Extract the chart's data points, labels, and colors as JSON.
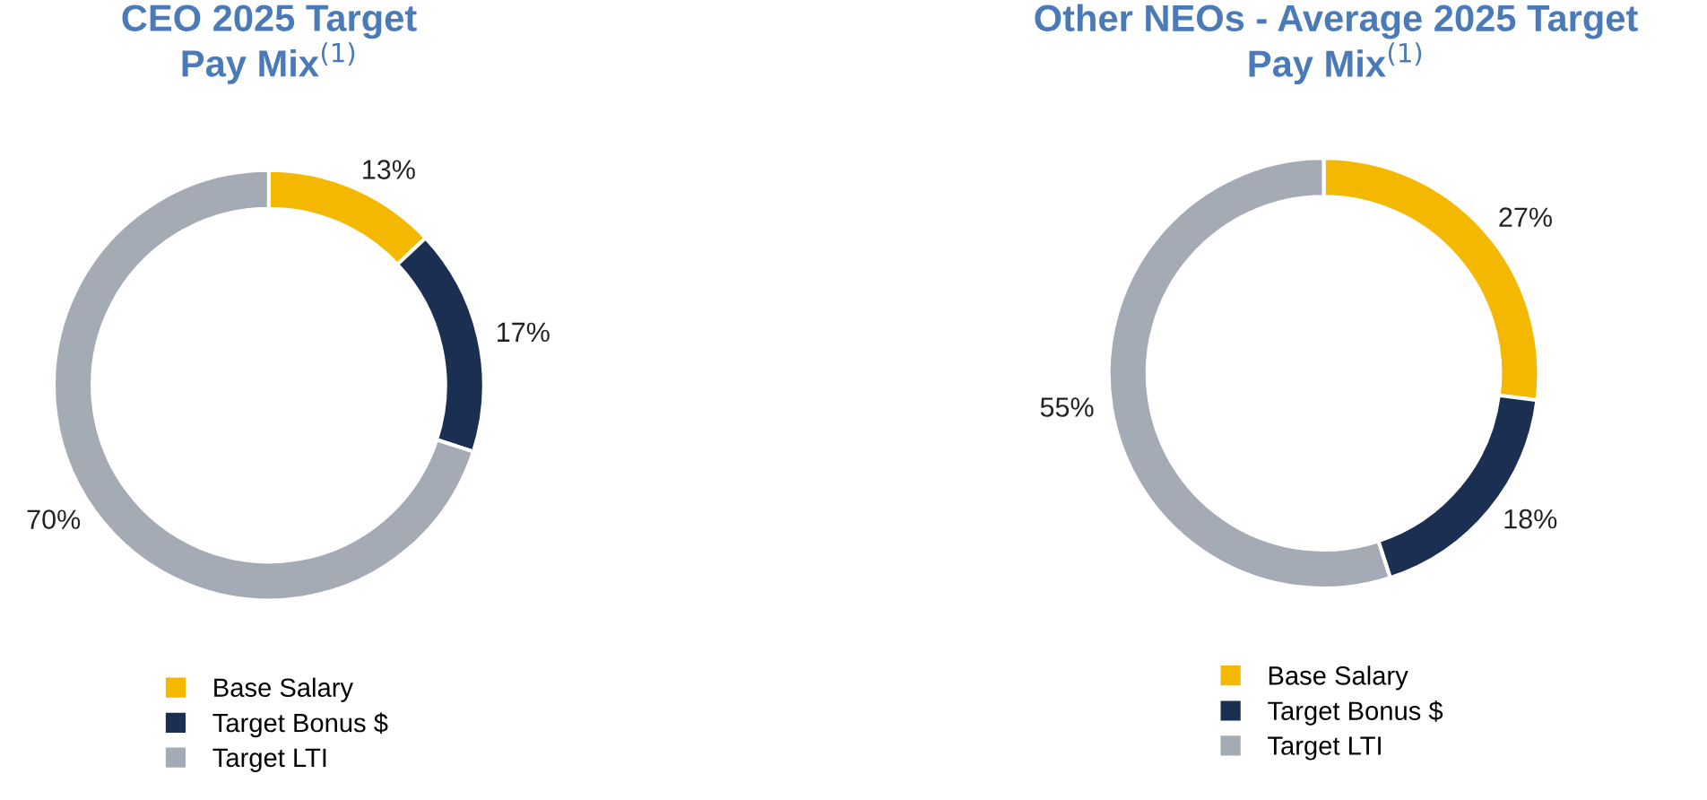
{
  "chart_data": [
    {
      "type": "donut",
      "title": "CEO 2025 Target\nPay Mix$^{(1)}$",
      "categories": [
        "Base Salary",
        "Target Bonus $",
        "Target LTI"
      ],
      "values": [
        13,
        17,
        70
      ],
      "value_labels": [
        "13%",
        "17%",
        "70%"
      ],
      "colors": [
        "#f5b800",
        "#1b2f52",
        "#a5abb5"
      ],
      "legend": "bottom"
    },
    {
      "type": "donut",
      "title": "Other NEOs - Average 2025 Target\nPay Mix$^{(1)}$",
      "categories": [
        "Base Salary",
        "Target Bonus $",
        "Target LTI"
      ],
      "values": [
        27,
        18,
        55
      ],
      "value_labels": [
        "27%",
        "18%",
        "55%"
      ],
      "colors": [
        "#f5b800",
        "#1b2f52",
        "#a5abb5"
      ],
      "legend": "bottom"
    }
  ]
}
